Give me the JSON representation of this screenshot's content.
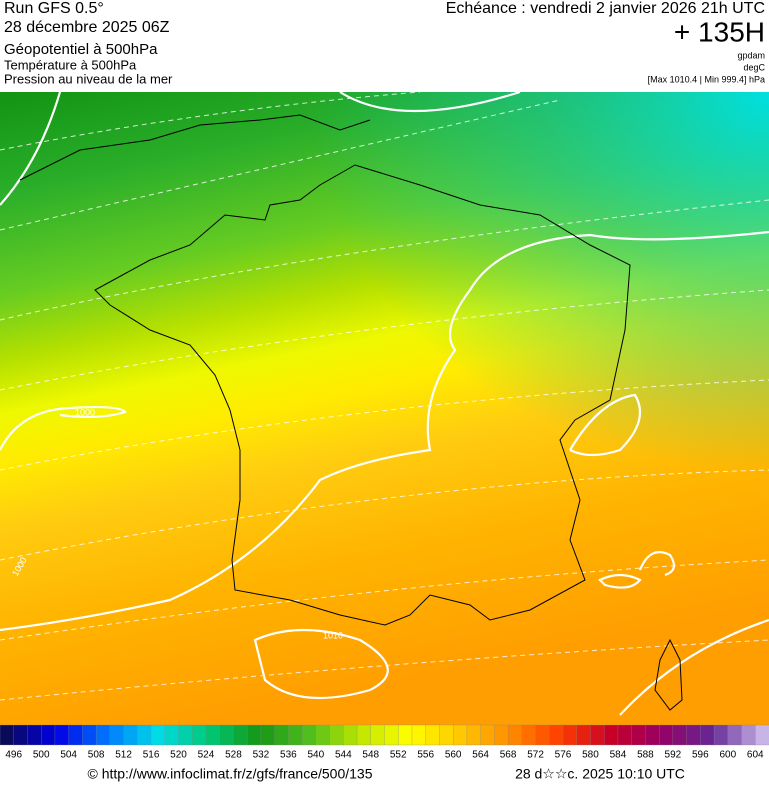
{
  "header": {
    "run": "Run GFS 0.5°",
    "date": "28 décembre 2025 06Z",
    "lines": [
      "Géopotentiel à 500hPa",
      "Température à 500hPa",
      "Pression au niveau de la mer"
    ],
    "echeance": "Echéance : vendredi 2 janvier 2026 21h UTC",
    "lead": "+ 135H",
    "units": [
      "gpdam",
      "degC",
      "[Max 1010.4 | Min 999.4] hPa"
    ]
  },
  "map": {
    "contour_labels": [
      "1000",
      "1000",
      "1010"
    ]
  },
  "colorbar": {
    "labels": [
      496,
      500,
      504,
      508,
      512,
      516,
      520,
      524,
      528,
      532,
      536,
      540,
      544,
      548,
      552,
      556,
      560,
      564,
      568,
      572,
      576,
      580,
      584,
      588,
      592,
      596,
      600,
      604
    ]
  },
  "footer": {
    "url": "© http://www.infoclimat.fr/z/gfs/france/500/135",
    "timestamp": "28 d☆☆c. 2025 10:10 UTC"
  }
}
